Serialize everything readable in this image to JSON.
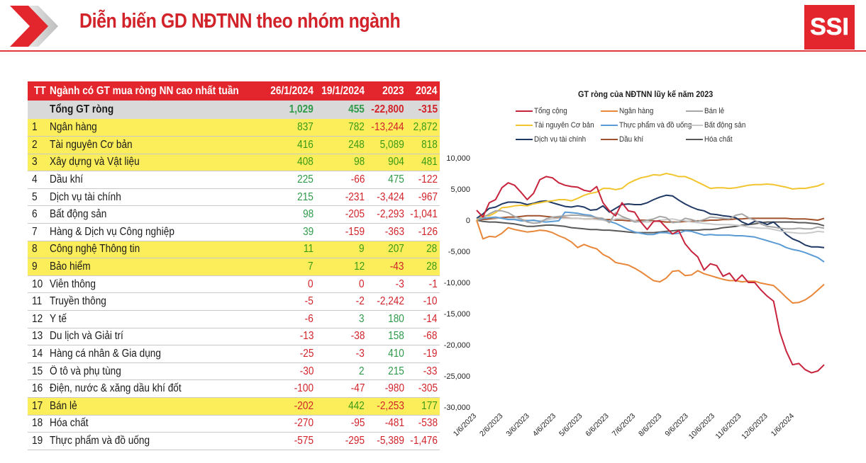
{
  "header": {
    "title": "Diễn biến GD NĐTNN theo nhóm ngành",
    "logo_text": "SSI",
    "brand_color": "#e3262d"
  },
  "table": {
    "columns": [
      "TT",
      "Ngành có GT mua ròng NN cao nhất tuần",
      "26/1/2024",
      "19/1/2024",
      "2023",
      "2024"
    ],
    "total": {
      "name": "Tổng GT ròng",
      "values": [
        "1,029",
        "455",
        "-22,800",
        "-315"
      ]
    },
    "rows": [
      {
        "tt": "1",
        "name": "Ngân hàng",
        "highlight": true,
        "values": [
          "837",
          "782",
          "-13,244",
          "2,872"
        ]
      },
      {
        "tt": "2",
        "name": "Tài nguyên Cơ bản",
        "highlight": true,
        "values": [
          "416",
          "248",
          "5,089",
          "818"
        ]
      },
      {
        "tt": "3",
        "name": "Xây dựng và Vật liệu",
        "highlight": true,
        "values": [
          "408",
          "98",
          "904",
          "481"
        ]
      },
      {
        "tt": "4",
        "name": "Dầu khí",
        "highlight": false,
        "values": [
          "225",
          "-66",
          "475",
          "-122"
        ]
      },
      {
        "tt": "5",
        "name": "Dịch vụ tài chính",
        "highlight": false,
        "values": [
          "215",
          "-231",
          "-3,424",
          "-967"
        ]
      },
      {
        "tt": "6",
        "name": "Bất động sản",
        "highlight": false,
        "values": [
          "98",
          "-205",
          "-2,293",
          "-1,041"
        ]
      },
      {
        "tt": "7",
        "name": "Hàng & Dịch vụ Công nghiệp",
        "highlight": false,
        "values": [
          "39",
          "-159",
          "-363",
          "-126"
        ]
      },
      {
        "tt": "8",
        "name": "Công nghệ Thông tin",
        "highlight": true,
        "values": [
          "11",
          "9",
          "207",
          "28"
        ]
      },
      {
        "tt": "9",
        "name": "Bảo hiểm",
        "highlight": true,
        "values": [
          "7",
          "12",
          "-43",
          "28"
        ]
      },
      {
        "tt": "10",
        "name": "Viễn thông",
        "highlight": false,
        "values": [
          "0",
          "0",
          "-3",
          "-1"
        ]
      },
      {
        "tt": "11",
        "name": "Truyền thông",
        "highlight": false,
        "values": [
          "-5",
          "-2",
          "-2,242",
          "-10"
        ]
      },
      {
        "tt": "12",
        "name": "Y tế",
        "highlight": false,
        "values": [
          "-6",
          "3",
          "180",
          "-14"
        ]
      },
      {
        "tt": "13",
        "name": "Du lịch và Giải trí",
        "highlight": false,
        "values": [
          "-13",
          "-38",
          "158",
          "-68"
        ]
      },
      {
        "tt": "14",
        "name": "Hàng cá nhân & Gia dụng",
        "highlight": false,
        "values": [
          "-25",
          "-3",
          "410",
          "-19"
        ]
      },
      {
        "tt": "15",
        "name": "Ô tô và phụ tùng",
        "highlight": false,
        "values": [
          "-30",
          "2",
          "215",
          "-33"
        ]
      },
      {
        "tt": "16",
        "name": "Điện, nước & xăng dầu khí đốt",
        "highlight": false,
        "values": [
          "-100",
          "-47",
          "-980",
          "-305"
        ]
      },
      {
        "tt": "17",
        "name": "Bán lẻ",
        "highlight": true,
        "values": [
          "-202",
          "442",
          "-2,253",
          "177"
        ]
      },
      {
        "tt": "18",
        "name": "Hóa chất",
        "highlight": false,
        "values": [
          "-270",
          "-95",
          "-481",
          "-538"
        ]
      },
      {
        "tt": "19",
        "name": "Thực phẩm và đồ uống",
        "highlight": false,
        "values": [
          "-575",
          "-295",
          "-5,389",
          "-1,476"
        ]
      }
    ],
    "colors": {
      "positive": "#2e9a4a",
      "positive_highlight": "#3a9a16",
      "negative": "#d2232a",
      "highlight_bg": "#fbee5a",
      "total_bg": "#d9d9d9"
    }
  },
  "chart_data": {
    "type": "line",
    "title": "GT ròng của NĐTNN lũy kế năm 2023",
    "xlabel": "",
    "ylabel": "",
    "ylim": [
      -30000,
      10000
    ],
    "yticks": [
      10000,
      5000,
      0,
      -5000,
      -10000,
      -15000,
      -20000,
      -25000,
      -30000
    ],
    "ytick_labels": [
      "10,000",
      "5,000",
      "0",
      "-5,000",
      "-10,000",
      "-15,000",
      "-20,000",
      "-25,000",
      "-30,000"
    ],
    "xtick_labels": [
      "1/6/2023",
      "2/6/2023",
      "3/6/2023",
      "4/6/2023",
      "5/6/2023",
      "6/6/2023",
      "7/6/2023",
      "8/6/2023",
      "9/6/2023",
      "10/6/2023",
      "11/6/2023",
      "12/6/2023",
      "1/6/2024"
    ],
    "grid": false,
    "legend_position": "top",
    "n_points": 56,
    "series": [
      {
        "name": "Tổng cộng",
        "color": "#c8233c",
        "values": [
          1600,
          500,
          2800,
          3300,
          5200,
          6000,
          5600,
          4500,
          3300,
          4300,
          6500,
          7000,
          6800,
          6000,
          5600,
          5400,
          5300,
          4800,
          4600,
          5400,
          2800,
          1500,
          700,
          2800,
          1500,
          1300,
          -300,
          -1500,
          -200,
          -100,
          -1200,
          -2200,
          -1700,
          -3800,
          -5000,
          -5900,
          -8000,
          -7000,
          -7300,
          -9000,
          -8500,
          -9800,
          -8800,
          -10000,
          -10000,
          -11200,
          -12200,
          -13000,
          -18000,
          -21000,
          -23200,
          -23000,
          -24000,
          -24500,
          -24200,
          -23200
        ]
      },
      {
        "name": "Ngân hàng",
        "color": "#e8873a",
        "values": [
          0,
          -3000,
          -2600,
          -2700,
          -2100,
          -1200,
          -1500,
          -1700,
          -1900,
          -1800,
          -1600,
          -1700,
          -2000,
          -2500,
          -2900,
          -3500,
          -4400,
          -3900,
          -4300,
          -4600,
          -5500,
          -6000,
          -6800,
          -7000,
          -7200,
          -7700,
          -8300,
          -9000,
          -9700,
          -9900,
          -9300,
          -8200,
          -8100,
          -8900,
          -8800,
          -8100,
          -8600,
          -8900,
          -9200,
          -9500,
          -9700,
          -9700,
          -9900,
          -9800,
          -9800,
          -10100,
          -10300,
          -10500,
          -11400,
          -12400,
          -13300,
          -13200,
          -12800,
          -12100,
          -11200,
          -10300
        ]
      },
      {
        "name": "Bán lẻ",
        "color": "#a6a6a6",
        "values": [
          200,
          400,
          1000,
          1500,
          1500,
          1200,
          600,
          200,
          -300,
          -500,
          -400,
          200,
          500,
          600,
          700,
          800,
          800,
          700,
          600,
          400,
          300,
          -400,
          1200,
          600,
          200,
          -300,
          -200,
          0,
          200,
          600,
          400,
          -400,
          -300,
          300,
          100,
          -200,
          100,
          500,
          400,
          300,
          200,
          800,
          1000,
          400,
          0,
          -600,
          -1000,
          -1100,
          -1300,
          -1400,
          -1400,
          -1300,
          -1400,
          -1400,
          -1100,
          -1300
        ]
      },
      {
        "name": "Tài nguyên Cơ bản",
        "color": "#f2c52e",
        "values": [
          0,
          700,
          700,
          1200,
          2000,
          2100,
          2300,
          2400,
          2300,
          2600,
          2800,
          3000,
          3100,
          3300,
          3300,
          3100,
          3500,
          4000,
          4300,
          4500,
          5100,
          5100,
          4900,
          5100,
          5900,
          6400,
          6800,
          7000,
          7300,
          7200,
          7500,
          7300,
          7000,
          7000,
          6600,
          6100,
          5600,
          5100,
          5200,
          5200,
          5100,
          5200,
          5400,
          5600,
          5700,
          5700,
          5800,
          5700,
          5500,
          5300,
          5000,
          5100,
          5100,
          5300,
          5500,
          5900
        ]
      },
      {
        "name": "Thực phẩm và đồ uống",
        "color": "#5b9bd5",
        "values": [
          0,
          300,
          400,
          500,
          300,
          100,
          100,
          -100,
          -100,
          0,
          -200,
          -300,
          -200,
          -100,
          1300,
          1200,
          1100,
          900,
          800,
          400,
          200,
          -200,
          -500,
          -1000,
          -1500,
          -1900,
          -2100,
          -2300,
          -2300,
          -2000,
          -2000,
          -2200,
          -2100,
          -1700,
          -1800,
          -2100,
          -2400,
          -2300,
          -2400,
          -2400,
          -2400,
          -2500,
          -2500,
          -2600,
          -2700,
          -3000,
          -3300,
          -3600,
          -3900,
          -4400,
          -4700,
          -4900,
          -5200,
          -5600,
          -6000,
          -6700
        ]
      },
      {
        "name": "Bất động sản",
        "color": "#c9c9c9",
        "values": [
          0,
          300,
          400,
          400,
          300,
          200,
          200,
          100,
          0,
          -100,
          -100,
          0,
          200,
          300,
          300,
          300,
          300,
          200,
          200,
          100,
          0,
          -200,
          200,
          300,
          200,
          -100,
          -300,
          -300,
          -200,
          0,
          100,
          200,
          0,
          -100,
          -300,
          -400,
          -500,
          -600,
          -700,
          -700,
          -700,
          -800,
          -900,
          -1100,
          -1200,
          -1300,
          -1300,
          -1500,
          -1700,
          -1900,
          -2000,
          -2100,
          -2100,
          -2000,
          -1800,
          -1900
        ]
      },
      {
        "name": "Dịch vụ tài chính",
        "color": "#1f3864",
        "values": [
          300,
          1000,
          1900,
          2100,
          2600,
          2900,
          2900,
          2800,
          2500,
          2700,
          3000,
          3100,
          2800,
          2500,
          2200,
          2100,
          2300,
          2100,
          1600,
          1700,
          2300,
          1300,
          1900,
          2500,
          2600,
          2500,
          2500,
          2800,
          3300,
          3700,
          4000,
          3900,
          3200,
          2600,
          2100,
          1700,
          1500,
          1000,
          900,
          700,
          600,
          400,
          -300,
          -700,
          -200,
          -300,
          -700,
          -300,
          -1200,
          -2300,
          -3000,
          -3400,
          -4000,
          -4300,
          -4300,
          -4400
        ]
      },
      {
        "name": "Dầu khí",
        "color": "#a0522d",
        "values": [
          0,
          100,
          200,
          300,
          400,
          500,
          500,
          600,
          700,
          700,
          700,
          600,
          500,
          400,
          400,
          300,
          300,
          200,
          200,
          200,
          100,
          100,
          0,
          0,
          -100,
          -100,
          0,
          0,
          -100,
          -200,
          -300,
          -300,
          -300,
          -200,
          -200,
          -100,
          -100,
          0,
          0,
          100,
          100,
          200,
          200,
          300,
          300,
          300,
          300,
          300,
          300,
          300,
          200,
          200,
          200,
          100,
          0,
          300
        ]
      },
      {
        "name": "Hóa chất",
        "color": "#595959",
        "values": [
          0,
          -200,
          -300,
          -300,
          -400,
          -500,
          -600,
          -800,
          -1000,
          -1000,
          -900,
          -800,
          -800,
          -900,
          -1000,
          -1200,
          -1300,
          -1400,
          -1500,
          -1500,
          -1600,
          -1600,
          -1700,
          -1800,
          -1900,
          -2000,
          -2000,
          -2000,
          -2000,
          -1900,
          -1800,
          -1700,
          -1600,
          -1600,
          -1600,
          -1600,
          -1500,
          -1500,
          -1400,
          -1200,
          -1100,
          -1000,
          -800,
          -700,
          -600,
          -400,
          -300,
          -300,
          -300,
          -300,
          -300,
          -400,
          -400,
          -500,
          -600,
          -900
        ]
      }
    ]
  }
}
